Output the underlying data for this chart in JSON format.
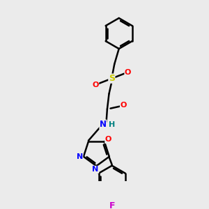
{
  "background_color": "#ebebeb",
  "bond_color": "#000000",
  "bond_width": 1.8,
  "atom_colors": {
    "S": "#cccc00",
    "O": "#ff0000",
    "N": "#0000ff",
    "F": "#cc00cc",
    "H": "#008080",
    "C": "#000000"
  },
  "figsize": [
    3.0,
    3.0
  ],
  "dpi": 100
}
